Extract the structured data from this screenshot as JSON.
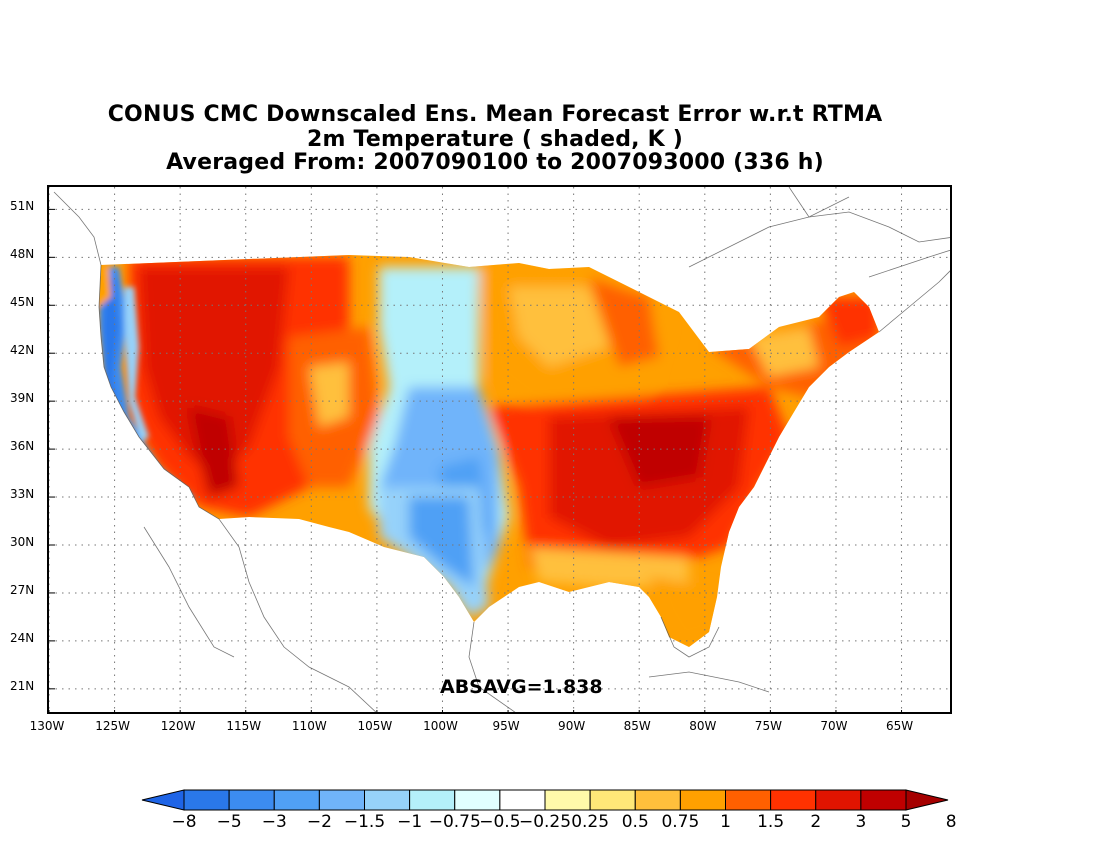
{
  "title": {
    "line1": "CONUS CMC Downscaled Ens. Mean Forecast Error w.r.t RTMA",
    "line2": "2m Temperature ( shaded, K )",
    "line3": "Averaged From: 2007090100 to 2007093000 (336 h)"
  },
  "annotation": "ABSAVG=1.838",
  "axes": {
    "lat_labels": [
      "51N",
      "48N",
      "45N",
      "42N",
      "39N",
      "36N",
      "33N",
      "30N",
      "27N",
      "24N",
      "21N"
    ],
    "lat_values": [
      51,
      48,
      45,
      42,
      39,
      36,
      33,
      30,
      27,
      24,
      21
    ],
    "lon_labels": [
      "130W",
      "125W",
      "120W",
      "115W",
      "110W",
      "105W",
      "100W",
      "95W",
      "90W",
      "85W",
      "80W",
      "75W",
      "70W",
      "65W"
    ],
    "lon_values": [
      -130,
      -125,
      -120,
      -115,
      -110,
      -105,
      -100,
      -95,
      -90,
      -85,
      -80,
      -75,
      -70,
      -65
    ],
    "lon_range": [
      -130,
      -61
    ],
    "lat_range": [
      19.3,
      52.4
    ],
    "grid": "dotted"
  },
  "colorbar": {
    "labels": [
      "-8",
      "-5",
      "-3",
      "-2",
      "-1.5",
      "-1",
      "-0.75",
      "-0.5",
      "-0.25",
      "0.25",
      "0.5",
      "0.75",
      "1",
      "1.5",
      "2",
      "3",
      "5",
      "8"
    ],
    "colors": [
      "#1e64e6",
      "#2a78ea",
      "#3c8cf0",
      "#50a0f5",
      "#70b4fa",
      "#96d2fa",
      "#b4f0fa",
      "#e1ffff",
      "#ffffff",
      "#fffaaa",
      "#ffe878",
      "#ffc03c",
      "#ffa000",
      "#ff6000",
      "#ff3200",
      "#e11400",
      "#c00000",
      "#a50000"
    ]
  },
  "field_regions": [
    {
      "name": "west-coast-cold",
      "level": -2.5,
      "color": "#3c8cf0"
    },
    {
      "name": "great-basin-warm",
      "level": 4,
      "color": "#e11400"
    },
    {
      "name": "rockies-warm",
      "level": 3,
      "color": "#ff3200"
    },
    {
      "name": "plains-cool",
      "level": -0.8,
      "color": "#96d2fa"
    },
    {
      "name": "texas-cool",
      "level": -1.5,
      "color": "#70b4fa"
    },
    {
      "name": "midwest-warm",
      "level": 1.5,
      "color": "#ffa000"
    },
    {
      "name": "southeast-warm",
      "level": 3.5,
      "color": "#e11400"
    },
    {
      "name": "northeast-warm",
      "level": 2,
      "color": "#ff6000"
    },
    {
      "name": "florida-mild",
      "level": 0.8,
      "color": "#ffc03c"
    }
  ]
}
